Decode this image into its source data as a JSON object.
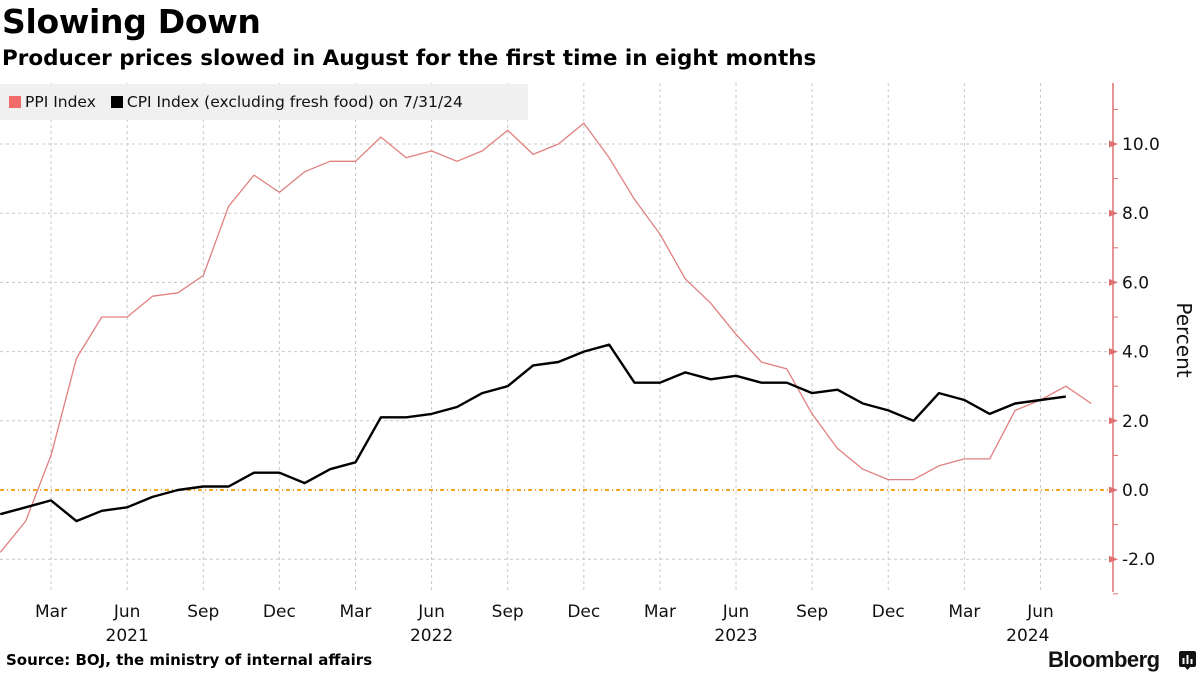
{
  "header": {
    "title": "Slowing Down",
    "subtitle": "Producer prices slowed in August for the first time in eight months"
  },
  "footer": {
    "source": "Source: BOJ, the ministry of internal affairs",
    "brand": "Bloomberg",
    "brand_icon": "bloomberg-chart-icon"
  },
  "colors": {
    "ppi": "#f26b6b",
    "ppi_line": "#e08080",
    "cpi": "#000000",
    "zero_line": "#f5a623",
    "axis": "#e07070",
    "grid": "#c8c8c8",
    "legend_bg": "#f0f0f0"
  },
  "chart_data": {
    "type": "line",
    "title": "Slowing Down",
    "subtitle": "Producer prices slowed in August for the first time in eight months",
    "xlabel": "",
    "ylabel": "Percent",
    "ylim": [
      -3.0,
      11.8
    ],
    "yticks": [
      -2.0,
      0.0,
      2.0,
      4.0,
      6.0,
      8.0,
      10.0
    ],
    "ytick_labels": [
      "-2.0",
      "0.0",
      "2.0",
      "4.0",
      "6.0",
      "8.0",
      "10.0"
    ],
    "y_axis_side": "right",
    "grid": true,
    "reference_line": 0.0,
    "legend_placement": "top-left",
    "x": [
      "2021-01",
      "2021-02",
      "2021-03",
      "2021-04",
      "2021-05",
      "2021-06",
      "2021-07",
      "2021-08",
      "2021-09",
      "2021-10",
      "2021-11",
      "2021-12",
      "2022-01",
      "2022-02",
      "2022-03",
      "2022-04",
      "2022-05",
      "2022-06",
      "2022-07",
      "2022-08",
      "2022-09",
      "2022-10",
      "2022-11",
      "2022-12",
      "2023-01",
      "2023-02",
      "2023-03",
      "2023-04",
      "2023-05",
      "2023-06",
      "2023-07",
      "2023-08",
      "2023-09",
      "2023-10",
      "2023-11",
      "2023-12",
      "2024-01",
      "2024-02",
      "2024-03",
      "2024-04",
      "2024-05",
      "2024-06",
      "2024-07",
      "2024-08"
    ],
    "xticks": [
      {
        "month_index": 2,
        "label": "Mar",
        "year": ""
      },
      {
        "month_index": 5,
        "label": "Jun",
        "year": "2021"
      },
      {
        "month_index": 8,
        "label": "Sep",
        "year": ""
      },
      {
        "month_index": 11,
        "label": "Dec",
        "year": ""
      },
      {
        "month_index": 14,
        "label": "Mar",
        "year": ""
      },
      {
        "month_index": 17,
        "label": "Jun",
        "year": "2022"
      },
      {
        "month_index": 20,
        "label": "Sep",
        "year": ""
      },
      {
        "month_index": 23,
        "label": "Dec",
        "year": ""
      },
      {
        "month_index": 26,
        "label": "Mar",
        "year": ""
      },
      {
        "month_index": 29,
        "label": "Jun",
        "year": "2023"
      },
      {
        "month_index": 32,
        "label": "Sep",
        "year": ""
      },
      {
        "month_index": 35,
        "label": "Dec",
        "year": ""
      },
      {
        "month_index": 38,
        "label": "Mar",
        "year": ""
      },
      {
        "month_index": 41,
        "label": "Jun",
        "year": ""
      }
    ],
    "year_labels": [
      {
        "month_index": 5,
        "label": "2021"
      },
      {
        "month_index": 17,
        "label": "2022"
      },
      {
        "month_index": 29,
        "label": "2023"
      },
      {
        "month_index": 40.5,
        "label": "2024"
      }
    ],
    "series": [
      {
        "name": "PPI Index",
        "legend_label": "PPI Index",
        "values": [
          -1.8,
          -0.9,
          1.0,
          3.8,
          5.0,
          5.0,
          5.6,
          5.7,
          6.2,
          8.2,
          9.1,
          8.6,
          9.2,
          9.5,
          9.5,
          10.2,
          9.6,
          9.8,
          9.5,
          9.8,
          10.4,
          9.7,
          10.0,
          10.6,
          9.6,
          8.4,
          7.4,
          6.1,
          5.4,
          4.5,
          3.7,
          3.5,
          2.2,
          1.2,
          0.6,
          0.3,
          0.3,
          0.7,
          0.9,
          0.9,
          2.3,
          2.6,
          3.0,
          2.5
        ]
      },
      {
        "name": "CPI Index (excluding fresh food)",
        "legend_label": "CPI Index (excluding fresh food) on 7/31/24",
        "values": [
          -0.7,
          -0.5,
          -0.3,
          -0.9,
          -0.6,
          -0.5,
          -0.2,
          0.0,
          0.1,
          0.1,
          0.5,
          0.5,
          0.2,
          0.6,
          0.8,
          2.1,
          2.1,
          2.2,
          2.4,
          2.8,
          3.0,
          3.6,
          3.7,
          4.0,
          4.2,
          3.1,
          3.1,
          3.4,
          3.2,
          3.3,
          3.1,
          3.1,
          2.8,
          2.9,
          2.5,
          2.3,
          2.0,
          2.8,
          2.6,
          2.2,
          2.5,
          2.6,
          2.7,
          null
        ]
      }
    ]
  }
}
